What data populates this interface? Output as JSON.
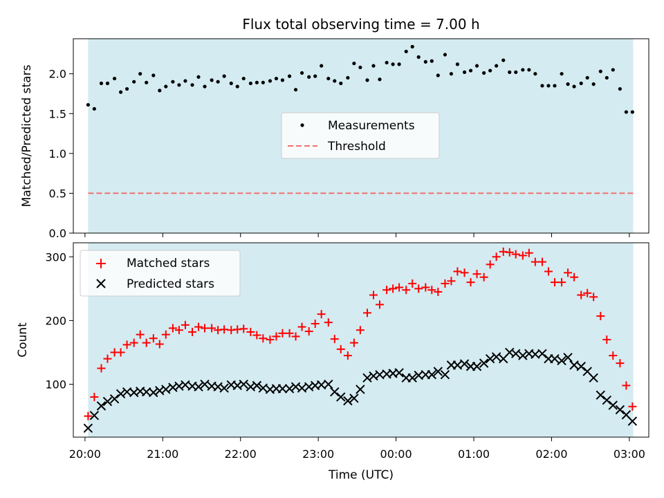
{
  "chart_data": [
    {
      "type": "scatter",
      "title": "Flux total observing time = 7.00 h",
      "ylabel": "Matched/Predicted stars",
      "ylim": [
        0,
        2.44
      ],
      "yticks": [
        0.0,
        0.5,
        1.0,
        1.5,
        2.0
      ],
      "ytick_labels": [
        "0.0",
        "0.5",
        "1.0",
        "1.5",
        "2.0"
      ],
      "xlim": [
        -0.15,
        7.25
      ],
      "shaded_span": [
        0.04,
        7.05
      ],
      "threshold": 0.5,
      "threshold_color": "#f07070",
      "shade_color": "#d4ebf1",
      "legend": {
        "placement": "center",
        "entries": [
          "Measurements",
          "Threshold"
        ]
      },
      "series": [
        {
          "name": "Measurements",
          "marker": "dot",
          "color": "#000000",
          "x": [
            0.04,
            0.12,
            0.21,
            0.29,
            0.38,
            0.46,
            0.54,
            0.63,
            0.71,
            0.79,
            0.88,
            0.96,
            1.04,
            1.13,
            1.21,
            1.29,
            1.38,
            1.46,
            1.54,
            1.63,
            1.71,
            1.79,
            1.88,
            1.96,
            2.04,
            2.13,
            2.21,
            2.29,
            2.38,
            2.46,
            2.54,
            2.63,
            2.71,
            2.79,
            2.88,
            2.96,
            3.04,
            3.13,
            3.21,
            3.29,
            3.38,
            3.46,
            3.54,
            3.63,
            3.71,
            3.79,
            3.88,
            3.96,
            4.04,
            4.13,
            4.21,
            4.29,
            4.38,
            4.46,
            4.54,
            4.63,
            4.71,
            4.79,
            4.88,
            4.96,
            5.04,
            5.13,
            5.21,
            5.29,
            5.38,
            5.46,
            5.54,
            5.63,
            5.71,
            5.79,
            5.88,
            5.96,
            6.04,
            6.13,
            6.21,
            6.29,
            6.38,
            6.46,
            6.54,
            6.63,
            6.71,
            6.79,
            6.88,
            6.96,
            7.04
          ],
          "y": [
            1.61,
            1.56,
            1.88,
            1.88,
            1.94,
            1.77,
            1.81,
            1.9,
            2.0,
            1.89,
            1.98,
            1.79,
            1.84,
            1.9,
            1.86,
            1.91,
            1.86,
            1.96,
            1.84,
            1.92,
            1.9,
            1.97,
            1.88,
            1.84,
            1.94,
            1.88,
            1.89,
            1.89,
            1.91,
            1.94,
            1.92,
            1.97,
            1.8,
            2.01,
            1.96,
            1.97,
            2.1,
            1.94,
            1.91,
            1.88,
            1.95,
            2.13,
            2.08,
            1.92,
            2.1,
            1.93,
            2.14,
            2.12,
            2.12,
            2.28,
            2.34,
            2.21,
            2.15,
            2.16,
            1.98,
            2.24,
            2.0,
            2.12,
            2.02,
            2.04,
            2.1,
            2.01,
            2.04,
            2.1,
            2.17,
            2.02,
            2.02,
            2.05,
            2.05,
            2.0,
            1.85,
            1.85,
            1.85,
            2.0,
            1.87,
            1.84,
            1.88,
            1.95,
            1.87,
            2.03,
            1.95,
            2.05,
            1.81,
            1.52,
            1.52
          ]
        }
      ]
    },
    {
      "type": "scatter",
      "xlabel": "Time (UTC)",
      "ylabel": "Count",
      "ylim": [
        17,
        322
      ],
      "yticks": [
        100,
        200,
        300
      ],
      "ytick_labels": [
        "100",
        "200",
        "300"
      ],
      "xlim": [
        -0.15,
        7.25
      ],
      "xticks": [
        0,
        1,
        2,
        3,
        4,
        5,
        6,
        7
      ],
      "xtick_labels": [
        "20:00",
        "21:00",
        "22:00",
        "23:00",
        "00:00",
        "01:00",
        "02:00",
        "03:00"
      ],
      "shaded_span": [
        0.04,
        7.05
      ],
      "shade_color": "#d4ebf1",
      "legend": {
        "placement": "upper left",
        "entries": [
          "Matched stars",
          "Predicted stars"
        ]
      },
      "series": [
        {
          "name": "Matched stars",
          "marker": "plus",
          "color": "#ff0000",
          "x": [
            0.04,
            0.12,
            0.21,
            0.29,
            0.38,
            0.46,
            0.54,
            0.63,
            0.71,
            0.79,
            0.88,
            0.96,
            1.04,
            1.13,
            1.21,
            1.29,
            1.38,
            1.46,
            1.54,
            1.63,
            1.71,
            1.79,
            1.88,
            1.96,
            2.04,
            2.13,
            2.21,
            2.29,
            2.38,
            2.46,
            2.54,
            2.63,
            2.71,
            2.79,
            2.88,
            2.96,
            3.04,
            3.13,
            3.21,
            3.29,
            3.38,
            3.46,
            3.54,
            3.63,
            3.71,
            3.79,
            3.88,
            3.96,
            4.04,
            4.13,
            4.21,
            4.29,
            4.38,
            4.46,
            4.54,
            4.63,
            4.71,
            4.79,
            4.88,
            4.96,
            5.04,
            5.13,
            5.21,
            5.29,
            5.38,
            5.46,
            5.54,
            5.63,
            5.71,
            5.79,
            5.88,
            5.96,
            6.04,
            6.13,
            6.21,
            6.29,
            6.38,
            6.46,
            6.54,
            6.63,
            6.71,
            6.79,
            6.88,
            6.96,
            7.04
          ],
          "y": [
            50,
            80,
            125,
            140,
            150,
            150,
            162,
            165,
            178,
            165,
            172,
            163,
            178,
            188,
            185,
            193,
            182,
            190,
            188,
            188,
            185,
            186,
            185,
            186,
            187,
            182,
            177,
            172,
            170,
            175,
            180,
            180,
            175,
            190,
            183,
            195,
            210,
            197,
            171,
            155,
            145,
            165,
            185,
            212,
            240,
            225,
            248,
            250,
            252,
            248,
            258,
            250,
            252,
            248,
            245,
            258,
            262,
            277,
            275,
            260,
            273,
            268,
            288,
            300,
            308,
            307,
            304,
            302,
            306,
            292,
            292,
            277,
            260,
            260,
            275,
            268,
            240,
            243,
            237,
            207,
            170,
            145,
            133,
            98,
            65
          ]
        },
        {
          "name": "Predicted stars",
          "marker": "x",
          "color": "#000000",
          "x": [
            0.04,
            0.12,
            0.21,
            0.29,
            0.38,
            0.46,
            0.54,
            0.63,
            0.71,
            0.79,
            0.88,
            0.96,
            1.04,
            1.13,
            1.21,
            1.29,
            1.38,
            1.46,
            1.54,
            1.63,
            1.71,
            1.79,
            1.88,
            1.96,
            2.04,
            2.13,
            2.21,
            2.29,
            2.38,
            2.46,
            2.54,
            2.63,
            2.71,
            2.79,
            2.88,
            2.96,
            3.04,
            3.13,
            3.21,
            3.29,
            3.38,
            3.46,
            3.54,
            3.63,
            3.71,
            3.79,
            3.88,
            3.96,
            4.04,
            4.13,
            4.21,
            4.29,
            4.38,
            4.46,
            4.54,
            4.63,
            4.71,
            4.79,
            4.88,
            4.96,
            5.04,
            5.13,
            5.21,
            5.29,
            5.38,
            5.46,
            5.54,
            5.63,
            5.71,
            5.79,
            5.88,
            5.96,
            6.04,
            6.13,
            6.21,
            6.29,
            6.38,
            6.46,
            6.54,
            6.63,
            6.71,
            6.79,
            6.88,
            6.96,
            7.04
          ],
          "y": [
            31,
            51,
            66,
            73,
            77,
            85,
            88,
            87,
            89,
            88,
            87,
            90,
            92,
            95,
            97,
            99,
            97,
            96,
            100,
            97,
            96,
            94,
            99,
            98,
            100,
            96,
            98,
            94,
            92,
            93,
            93,
            93,
            96,
            94,
            96,
            98,
            99,
            100,
            88,
            80,
            74,
            78,
            92,
            110,
            113,
            115,
            116,
            117,
            118,
            110,
            110,
            114,
            115,
            115,
            120,
            115,
            130,
            130,
            132,
            128,
            128,
            133,
            140,
            143,
            140,
            150,
            148,
            145,
            148,
            147,
            148,
            140,
            140,
            137,
            142,
            130,
            128,
            120,
            110,
            83,
            75,
            67,
            60,
            52,
            42
          ]
        }
      ]
    }
  ]
}
